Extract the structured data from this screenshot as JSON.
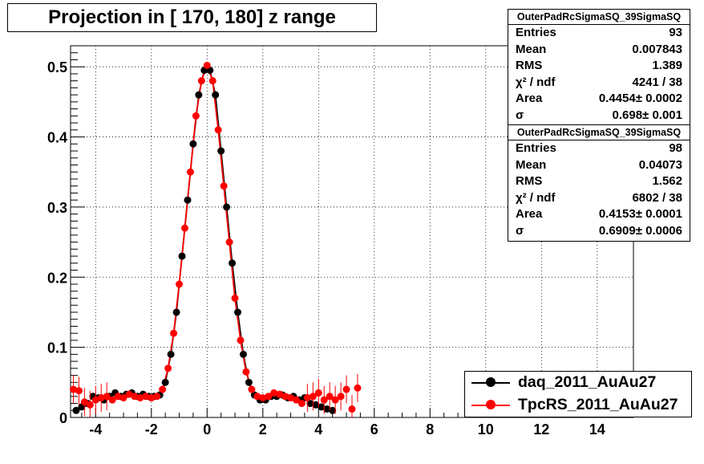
{
  "title": "Projection in [ 170, 180] z range",
  "stats_boxes": [
    {
      "name": "OuterPadRcSigmaSQ_39SigmaSQ",
      "rows": [
        {
          "k": "Entries",
          "v": "93"
        },
        {
          "k": "Mean",
          "v": "0.007843"
        },
        {
          "k": "RMS",
          "v": "1.389"
        },
        {
          "k": "χ² / ndf",
          "v": "4241 / 38"
        },
        {
          "k": "Area",
          "v": "0.4454± 0.0002"
        },
        {
          "k": "σ",
          "v": "0.698± 0.001"
        }
      ]
    },
    {
      "name": "OuterPadRcSigmaSQ_39SigmaSQ",
      "rows": [
        {
          "k": "Entries",
          "v": "98"
        },
        {
          "k": "Mean",
          "v": "0.04073"
        },
        {
          "k": "RMS",
          "v": "1.562"
        },
        {
          "k": "χ² / ndf",
          "v": "6802 / 38"
        },
        {
          "k": "Area",
          "v": "0.4153± 0.0001"
        },
        {
          "k": "σ",
          "v": "0.6909± 0.0006"
        }
      ]
    }
  ],
  "legend": {
    "position": "bottom-right",
    "entries": [
      {
        "label": "daq_2011_AuAu27",
        "color": "#000000"
      },
      {
        "label": "TpcRS_2011_AuAu27",
        "color": "#ff0000"
      }
    ]
  },
  "chart_data": {
    "type": "scatter",
    "title": "Projection in [ 170, 180] z range",
    "xlim": [
      -4.9,
      15.3
    ],
    "ylim": [
      0,
      0.53
    ],
    "grid": true,
    "x_ticks": [
      -4,
      -2,
      0,
      2,
      4,
      6,
      8,
      10,
      12,
      14
    ],
    "y_ticks": [
      0,
      0.1,
      0.2,
      0.3,
      0.4,
      0.5
    ],
    "colors": {
      "daq": "#000000",
      "tpcrs": "#ff0000"
    },
    "series": [
      {
        "name": "daq_2011_AuAu27",
        "color": "#000000",
        "x": [
          -4.7,
          -4.5,
          -4.3,
          -4.1,
          -3.9,
          -3.7,
          -3.5,
          -3.3,
          -3.1,
          -2.9,
          -2.7,
          -2.5,
          -2.3,
          -2.1,
          -1.9,
          -1.7,
          -1.5,
          -1.3,
          -1.1,
          -0.9,
          -0.7,
          -0.5,
          -0.3,
          -0.1,
          0.1,
          0.3,
          0.5,
          0.7,
          0.9,
          1.1,
          1.3,
          1.5,
          1.7,
          1.9,
          2.1,
          2.3,
          2.5,
          2.7,
          2.9,
          3.1,
          3.3,
          3.5,
          3.7,
          3.9,
          4.1,
          4.3,
          4.5
        ],
        "y": [
          0.01,
          0.015,
          0.02,
          0.03,
          0.028,
          0.025,
          0.03,
          0.035,
          0.03,
          0.033,
          0.035,
          0.03,
          0.033,
          0.03,
          0.03,
          0.032,
          0.05,
          0.09,
          0.15,
          0.23,
          0.31,
          0.39,
          0.46,
          0.495,
          0.495,
          0.46,
          0.38,
          0.3,
          0.22,
          0.15,
          0.09,
          0.05,
          0.032,
          0.025,
          0.025,
          0.03,
          0.03,
          0.032,
          0.028,
          0.03,
          0.025,
          0.028,
          0.02,
          0.018,
          0.015,
          0.012,
          0.01
        ]
      },
      {
        "name": "TpcRS_2011_AuAu27",
        "color": "#ff0000",
        "x": [
          -4.8,
          -4.6,
          -4.4,
          -4.2,
          -4.0,
          -3.8,
          -3.6,
          -3.4,
          -3.2,
          -3.0,
          -2.8,
          -2.6,
          -2.4,
          -2.2,
          -2.0,
          -1.8,
          -1.6,
          -1.4,
          -1.2,
          -1.0,
          -0.8,
          -0.6,
          -0.4,
          -0.2,
          0.0,
          0.2,
          0.4,
          0.6,
          0.8,
          1.0,
          1.2,
          1.4,
          1.6,
          1.8,
          2.0,
          2.2,
          2.4,
          2.6,
          2.8,
          3.0,
          3.2,
          3.4,
          3.6,
          3.8,
          4.0,
          4.2,
          4.4,
          4.6,
          4.8,
          5.0,
          5.2,
          5.4
        ],
        "y": [
          0.04,
          0.038,
          0.022,
          0.018,
          0.025,
          0.028,
          0.03,
          0.025,
          0.03,
          0.028,
          0.033,
          0.03,
          0.028,
          0.03,
          0.028,
          0.03,
          0.04,
          0.07,
          0.12,
          0.19,
          0.27,
          0.35,
          0.43,
          0.48,
          0.502,
          0.48,
          0.41,
          0.33,
          0.25,
          0.17,
          0.11,
          0.065,
          0.04,
          0.03,
          0.028,
          0.03,
          0.035,
          0.033,
          0.03,
          0.028,
          0.025,
          0.02,
          0.028,
          0.03,
          0.035,
          0.025,
          0.03,
          0.025,
          0.03,
          0.04,
          0.012,
          0.042
        ]
      }
    ]
  }
}
